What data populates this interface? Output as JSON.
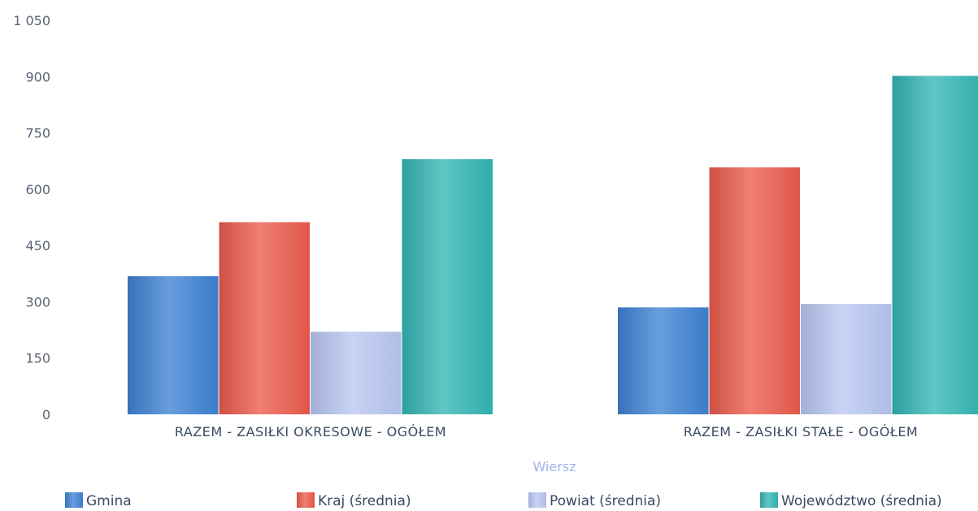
{
  "chart_data": {
    "type": "bar",
    "xlabel": "Wiersz",
    "ylabel": "",
    "ylim": [
      0,
      1050
    ],
    "yticks": [
      0,
      150,
      300,
      450,
      600,
      750,
      900,
      1050
    ],
    "ytick_labels": [
      "0",
      "150",
      "300",
      "450",
      "600",
      "750",
      "900",
      "1 050"
    ],
    "categories": [
      "RAZEM -  ZASIŁKI OKRESOWE - OGÓŁEM",
      "RAZEM -  ZASIŁKI STAŁE - OGÓŁEM"
    ],
    "series": [
      {
        "name": "Gmina",
        "values": [
          368,
          285
        ],
        "color": "#3d82d4"
      },
      {
        "name": "Kraj (średnia)",
        "values": [
          512,
          658
        ],
        "color": "#ec5b4d"
      },
      {
        "name": "Powiat (średnia)",
        "values": [
          220,
          294
        ],
        "color": "#b9c7f2"
      },
      {
        "name": "Województwo (średnia)",
        "values": [
          680,
          902
        ],
        "color": "#33b6b5"
      }
    ],
    "grid": false,
    "legend_position": "bottom"
  }
}
